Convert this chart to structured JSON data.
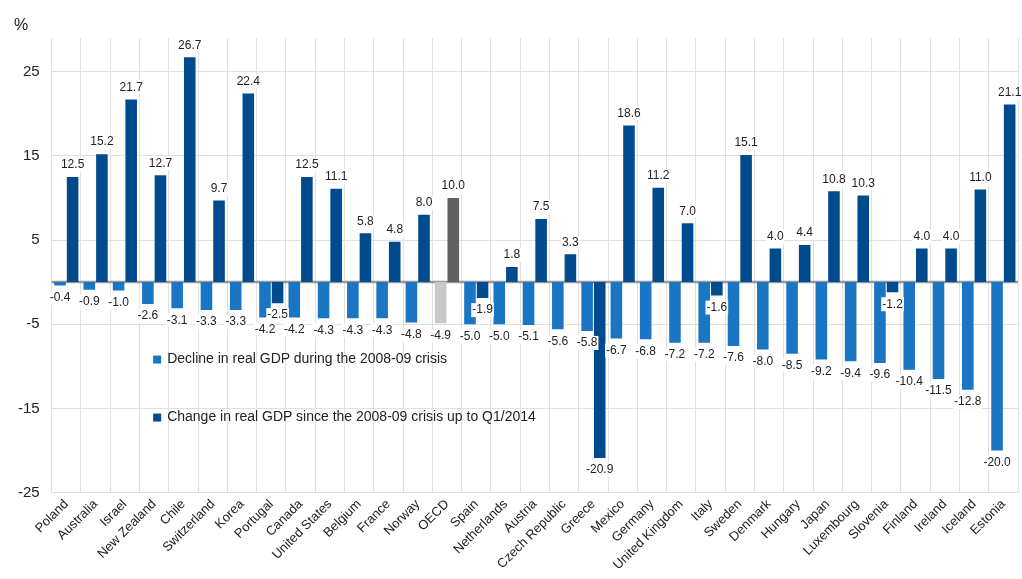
{
  "chart_data": {
    "type": "bar",
    "ylabel": "%",
    "categories": [
      "Poland",
      "Australia",
      "Israel",
      "New Zealand",
      "Chile",
      "Switzerland",
      "Korea",
      "Portugal",
      "Canada",
      "United States",
      "Belgium",
      "France",
      "Norway",
      "OECD",
      "Spain",
      "Netherlands",
      "Austria",
      "Czech Republic",
      "Greece",
      "Mexico",
      "Germany",
      "United Kingdom",
      "Italy",
      "Sweden",
      "Denmark",
      "Hungary",
      "Japan",
      "Luxembourg",
      "Slovenia",
      "Finland",
      "Ireland",
      "Iceland",
      "Estonia"
    ],
    "series": [
      {
        "name": "Decline in real GDP during the 2008-09 crisis",
        "color": "#1a75c2",
        "colors": [
          "#1a75c2",
          "#1a75c2",
          "#1a75c2",
          "#1a75c2",
          "#1a75c2",
          "#1a75c2",
          "#1a75c2",
          "#1a75c2",
          "#1a75c2",
          "#1a75c2",
          "#1a75c2",
          "#1a75c2",
          "#1a75c2",
          "#c8c8c8",
          "#1a75c2",
          "#1a75c2",
          "#1a75c2",
          "#1a75c2",
          "#1a75c2",
          "#1a75c2",
          "#1a75c2",
          "#1a75c2",
          "#1a75c2",
          "#1a75c2",
          "#1a75c2",
          "#1a75c2",
          "#1a75c2",
          "#1a75c2",
          "#1a75c2",
          "#1a75c2",
          "#1a75c2",
          "#1a75c2",
          "#1a75c2"
        ],
        "values": [
          -0.4,
          -0.9,
          -1.0,
          -2.6,
          -3.1,
          -3.3,
          -3.3,
          -4.2,
          -4.2,
          -4.3,
          -4.3,
          -4.3,
          -4.8,
          -4.9,
          -5.0,
          -5.0,
          -5.1,
          -5.6,
          -5.8,
          -6.7,
          -6.8,
          -7.2,
          -7.2,
          -7.6,
          -8.0,
          -8.5,
          -9.2,
          -9.4,
          -9.6,
          -10.4,
          -11.5,
          -12.8,
          -20.0
        ],
        "value_labels": [
          "-0.4",
          "-0.9",
          "-1.0",
          "-2.6",
          "-3.1",
          "-3.3",
          "-3.3",
          "-4.2",
          "-4.2",
          "-4.3",
          "-4.3",
          "-4.3",
          "-4.8",
          "-4.9",
          "-5.0",
          "-5.0",
          "-5.1",
          "-5.6",
          "-5.8",
          "-6.7",
          "-6.8",
          "-7.2",
          "-7.2",
          "-7.6",
          "-8.0",
          "-8.5",
          "-9.2",
          "-9.4",
          "-9.6",
          "-10.4",
          "-11.5",
          "-12.8",
          "-20.0"
        ]
      },
      {
        "name": "Change in real GDP since the 2008-09 crisis up to Q1/2014",
        "color": "#004b8d",
        "colors": [
          "#004b8d",
          "#004b8d",
          "#004b8d",
          "#004b8d",
          "#004b8d",
          "#004b8d",
          "#004b8d",
          "#004b8d",
          "#004b8d",
          "#004b8d",
          "#004b8d",
          "#004b8d",
          "#004b8d",
          "#606060",
          "#004b8d",
          "#004b8d",
          "#004b8d",
          "#004b8d",
          "#004b8d",
          "#004b8d",
          "#004b8d",
          "#004b8d",
          "#004b8d",
          "#004b8d",
          "#004b8d",
          "#004b8d",
          "#004b8d",
          "#004b8d",
          "#004b8d",
          "#004b8d",
          "#004b8d",
          "#004b8d",
          "#004b8d"
        ],
        "values": [
          12.5,
          15.2,
          21.7,
          12.7,
          26.7,
          9.7,
          22.4,
          -2.5,
          12.5,
          11.1,
          5.8,
          4.8,
          8.0,
          10.0,
          -1.9,
          1.8,
          7.5,
          3.3,
          -20.9,
          18.6,
          11.2,
          7.0,
          -1.6,
          15.1,
          4.0,
          4.4,
          10.8,
          10.3,
          -1.2,
          4.0,
          4.0,
          11.0,
          21.1
        ],
        "value_labels": [
          "12.5",
          "15.2",
          "21.7",
          "12.7",
          "26.7",
          "9.7",
          "22.4",
          "-2.5",
          "12.5",
          "11.1",
          "5.8",
          "4.8",
          "8.0",
          "10.0",
          "-1.9",
          "1.8",
          "7.5",
          "3.3",
          "-20.9",
          "18.6",
          "11.2",
          "7.0",
          "-1.6",
          "15.1",
          "4.0",
          "4.4",
          "10.8",
          "10.3",
          "-1.2",
          "4.0",
          "4.0",
          "11.0",
          "21.1"
        ]
      }
    ],
    "ylim": [
      -25,
      29
    ],
    "yticks": [
      -25,
      -15,
      -5,
      5,
      15,
      25
    ],
    "grid": true,
    "legend": "left"
  }
}
